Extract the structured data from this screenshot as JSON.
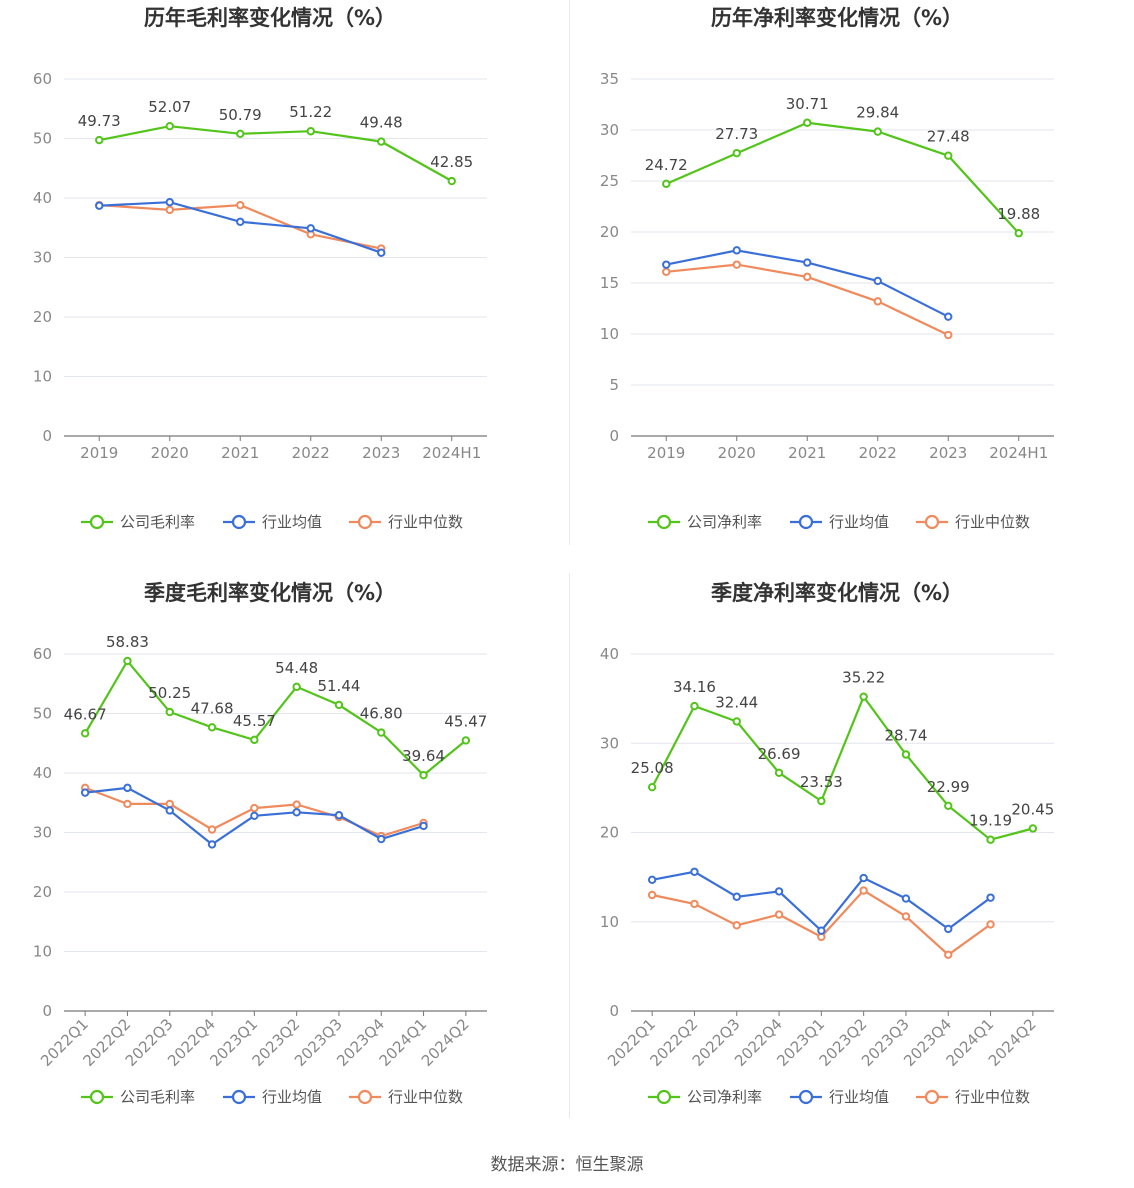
{
  "source": "数据来源：恒生聚源",
  "colors": {
    "company": "#52c41a",
    "avg": "#3a6fd8",
    "median": "#f08a5d",
    "grid": "#e3e6ee",
    "axis": "#777777"
  },
  "chart_data": [
    {
      "type": "line",
      "title": "历年毛利率变化情况（%）",
      "categories": [
        "2019",
        "2020",
        "2021",
        "2022",
        "2023",
        "2024H1"
      ],
      "ylim": [
        0,
        60
      ],
      "yticks": [
        0,
        10,
        20,
        30,
        40,
        50,
        60
      ],
      "rotate_labels": false,
      "series": [
        {
          "name": "公司毛利率",
          "key": "company",
          "values": [
            49.73,
            52.07,
            50.79,
            51.22,
            49.48,
            42.85
          ],
          "labels": [
            "49.73",
            "52.07",
            "50.79",
            "51.22",
            "49.48",
            "42.85"
          ]
        },
        {
          "name": "行业均值",
          "key": "avg",
          "values": [
            38.7,
            39.3,
            36.0,
            34.9,
            30.8,
            null
          ]
        },
        {
          "name": "行业中位数",
          "key": "median",
          "values": [
            38.8,
            38.0,
            38.8,
            33.9,
            31.5,
            null
          ]
        }
      ]
    },
    {
      "type": "line",
      "title": "历年净利率变化情况（%）",
      "categories": [
        "2019",
        "2020",
        "2021",
        "2022",
        "2023",
        "2024H1"
      ],
      "ylim": [
        0,
        35
      ],
      "yticks": [
        0,
        5,
        10,
        15,
        20,
        25,
        30,
        35
      ],
      "rotate_labels": false,
      "series": [
        {
          "name": "公司净利率",
          "key": "company",
          "values": [
            24.72,
            27.73,
            30.71,
            29.84,
            27.48,
            19.88
          ],
          "labels": [
            "24.72",
            "27.73",
            "30.71",
            "29.84",
            "27.48",
            "19.88"
          ]
        },
        {
          "name": "行业均值",
          "key": "avg",
          "values": [
            16.8,
            18.2,
            17.0,
            15.2,
            11.7,
            null
          ]
        },
        {
          "name": "行业中位数",
          "key": "median",
          "values": [
            16.1,
            16.8,
            15.6,
            13.2,
            9.9,
            null
          ]
        }
      ]
    },
    {
      "type": "line",
      "title": "季度毛利率变化情况（%）",
      "categories": [
        "2022Q1",
        "2022Q2",
        "2022Q3",
        "2022Q4",
        "2023Q1",
        "2023Q2",
        "2023Q3",
        "2023Q4",
        "2024Q1",
        "2024Q2"
      ],
      "ylim": [
        0,
        60
      ],
      "yticks": [
        0,
        10,
        20,
        30,
        40,
        50,
        60
      ],
      "rotate_labels": true,
      "series": [
        {
          "name": "公司毛利率",
          "key": "company",
          "values": [
            46.67,
            58.83,
            50.25,
            47.68,
            45.57,
            54.48,
            51.44,
            46.8,
            39.64,
            45.47
          ],
          "labels": [
            "46.67",
            "58.83",
            "50.25",
            "47.68",
            "45.57",
            "54.48",
            "51.44",
            "46.80",
            "39.64",
            "45.47"
          ]
        },
        {
          "name": "行业均值",
          "key": "avg",
          "values": [
            36.7,
            37.5,
            33.7,
            28.0,
            32.8,
            33.4,
            32.9,
            28.9,
            31.1,
            null
          ]
        },
        {
          "name": "行业中位数",
          "key": "median",
          "values": [
            37.5,
            34.8,
            34.8,
            30.5,
            34.1,
            34.7,
            32.6,
            29.4,
            31.6,
            null
          ]
        }
      ]
    },
    {
      "type": "line",
      "title": "季度净利率变化情况（%）",
      "categories": [
        "2022Q1",
        "2022Q2",
        "2022Q3",
        "2022Q4",
        "2023Q1",
        "2023Q2",
        "2023Q3",
        "2023Q4",
        "2024Q1",
        "2024Q2"
      ],
      "ylim": [
        0,
        40
      ],
      "yticks": [
        0,
        10,
        20,
        30,
        40
      ],
      "rotate_labels": true,
      "series": [
        {
          "name": "公司净利率",
          "key": "company",
          "values": [
            25.08,
            34.16,
            32.44,
            26.69,
            23.53,
            35.22,
            28.74,
            22.99,
            19.19,
            20.45
          ],
          "labels": [
            "25.08",
            "34.16",
            "32.44",
            "26.69",
            "23.53",
            "35.22",
            "28.74",
            "22.99",
            "19.19",
            "20.45"
          ]
        },
        {
          "name": "行业均值",
          "key": "avg",
          "values": [
            14.7,
            15.6,
            12.8,
            13.4,
            9.0,
            14.9,
            12.6,
            9.2,
            12.7,
            null
          ]
        },
        {
          "name": "行业中位数",
          "key": "median",
          "values": [
            13.0,
            12.0,
            9.6,
            10.8,
            8.3,
            13.5,
            10.6,
            6.3,
            9.7,
            null
          ]
        }
      ]
    }
  ]
}
